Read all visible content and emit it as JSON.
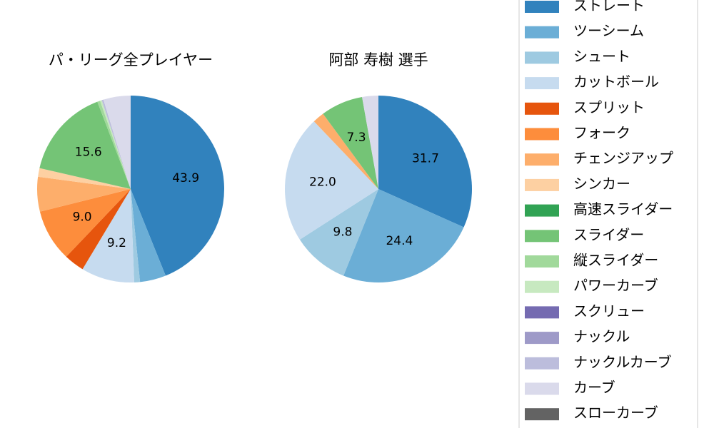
{
  "chart_data": [
    {
      "type": "pie",
      "title": "パ・リーグ全プレイヤー",
      "categories": [
        "ストレート",
        "ツーシーム",
        "シュート",
        "カットボール",
        "スプリット",
        "フォーク",
        "チェンジアップ",
        "シンカー",
        "高速スライダー",
        "スライダー",
        "縦スライダー",
        "パワーカーブ",
        "スクリュー",
        "ナックル",
        "ナックルカーブ",
        "カーブ",
        "スローカーブ"
      ],
      "colors": [
        "#3182bd",
        "#6baed6",
        "#9ecae1",
        "#c6dbef",
        "#e6550d",
        "#fd8d3c",
        "#fdae6b",
        "#fdd0a2",
        "#31a354",
        "#74c476",
        "#a1d99b",
        "#c7e9c0",
        "#756bb1",
        "#9e9ac8",
        "#bcbddc",
        "#dadaeb",
        "#636363"
      ],
      "values": [
        43.9,
        4.5,
        1.0,
        9.2,
        3.5,
        9.0,
        6.0,
        1.5,
        0,
        15.6,
        0.5,
        0.3,
        0,
        0,
        0.3,
        4.7,
        0
      ],
      "value_labels": [
        "43.9",
        null,
        null,
        "9.2",
        null,
        "9.0",
        null,
        null,
        null,
        "15.6",
        null,
        null,
        null,
        null,
        null,
        null,
        null
      ]
    },
    {
      "type": "pie",
      "title": "阿部 寿樹  選手",
      "categories": [
        "ストレート",
        "ツーシーム",
        "シュート",
        "カットボール",
        "スプリット",
        "フォーク",
        "チェンジアップ",
        "シンカー",
        "高速スライダー",
        "スライダー",
        "縦スライダー",
        "パワーカーブ",
        "スクリュー",
        "ナックル",
        "ナックルカーブ",
        "カーブ",
        "スローカーブ"
      ],
      "colors": [
        "#3182bd",
        "#6baed6",
        "#9ecae1",
        "#c6dbef",
        "#e6550d",
        "#fd8d3c",
        "#fdae6b",
        "#fdd0a2",
        "#31a354",
        "#74c476",
        "#a1d99b",
        "#c7e9c0",
        "#756bb1",
        "#9e9ac8",
        "#bcbddc",
        "#dadaeb",
        "#636363"
      ],
      "values": [
        31.7,
        24.4,
        9.8,
        22.0,
        0,
        0,
        2.0,
        0,
        0,
        7.3,
        0,
        0,
        0,
        0,
        0,
        2.8,
        0
      ],
      "value_labels": [
        "31.7",
        "24.4",
        "9.8",
        "22.0",
        null,
        null,
        null,
        null,
        null,
        "7.3",
        null,
        null,
        null,
        null,
        null,
        null,
        null
      ]
    }
  ]
}
